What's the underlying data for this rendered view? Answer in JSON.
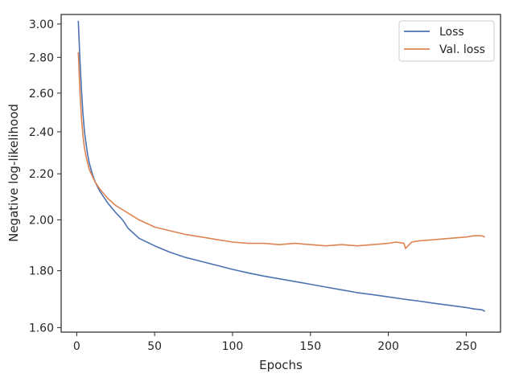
{
  "chart_data": {
    "type": "line",
    "title": "",
    "xlabel": "Epochs",
    "ylabel": "Negative log-likelihood",
    "xlim": [
      -10,
      272
    ],
    "ylim": [
      1.585,
      3.06
    ],
    "y_scale": "log",
    "grid": false,
    "legend_position": "top-right",
    "x_ticks": [
      0,
      50,
      100,
      150,
      200,
      250
    ],
    "x_tick_labels": [
      "0",
      "50",
      "100",
      "150",
      "200",
      "250"
    ],
    "y_ticks": [
      1.6,
      1.8,
      2.0,
      2.2,
      2.4,
      2.6,
      2.8,
      3.0
    ],
    "y_tick_labels": [
      "1.60",
      "1.80",
      "2.00",
      "2.20",
      "2.40",
      "2.60",
      "2.80",
      "3.00"
    ],
    "series": [
      {
        "name": "Loss",
        "color": "#4c72b0",
        "x": [
          1,
          2,
          3,
          4,
          5,
          6,
          7,
          8,
          10,
          12,
          15,
          20,
          25,
          28,
          30,
          33,
          40,
          50,
          60,
          70,
          80,
          90,
          100,
          110,
          120,
          130,
          140,
          150,
          160,
          170,
          180,
          190,
          200,
          210,
          220,
          230,
          240,
          250,
          255,
          260,
          262
        ],
        "y": [
          3.02,
          2.8,
          2.62,
          2.49,
          2.4,
          2.34,
          2.29,
          2.25,
          2.2,
          2.16,
          2.12,
          2.07,
          2.03,
          2.01,
          1.995,
          1.965,
          1.925,
          1.895,
          1.87,
          1.85,
          1.835,
          1.82,
          1.805,
          1.792,
          1.78,
          1.77,
          1.76,
          1.75,
          1.74,
          1.73,
          1.72,
          1.713,
          1.705,
          1.697,
          1.69,
          1.682,
          1.675,
          1.668,
          1.663,
          1.66,
          1.655
        ]
      },
      {
        "name": "Val. loss",
        "color": "#dd8452",
        "x": [
          1,
          2,
          3,
          4,
          5,
          6,
          7,
          8,
          10,
          12,
          15,
          20,
          25,
          30,
          35,
          40,
          50,
          60,
          70,
          80,
          90,
          100,
          110,
          120,
          130,
          140,
          150,
          160,
          170,
          180,
          190,
          200,
          205,
          210,
          211,
          215,
          220,
          230,
          240,
          250,
          255,
          260,
          262
        ],
        "y": [
          2.83,
          2.62,
          2.47,
          2.38,
          2.32,
          2.28,
          2.25,
          2.22,
          2.19,
          2.16,
          2.13,
          2.09,
          2.06,
          2.04,
          2.02,
          2.0,
          1.97,
          1.955,
          1.94,
          1.93,
          1.92,
          1.91,
          1.905,
          1.905,
          1.9,
          1.905,
          1.9,
          1.895,
          1.9,
          1.895,
          1.9,
          1.905,
          1.91,
          1.905,
          1.885,
          1.91,
          1.915,
          1.92,
          1.925,
          1.93,
          1.935,
          1.935,
          1.93
        ]
      }
    ]
  }
}
